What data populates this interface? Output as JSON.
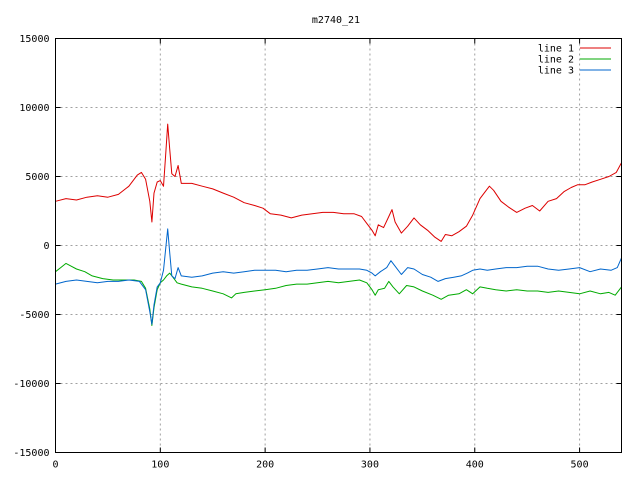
{
  "chart_data": {
    "type": "line",
    "title": "m2740_21",
    "xlabel": "",
    "ylabel": "",
    "xlim": [
      0,
      540
    ],
    "ylim": [
      -15000,
      15000
    ],
    "xticks": [
      0,
      100,
      200,
      300,
      400,
      500
    ],
    "yticks": [
      -15000,
      -10000,
      -5000,
      0,
      5000,
      10000,
      15000
    ],
    "grid": true,
    "legend_position": "top-right",
    "series": [
      {
        "name": "line 1",
        "color": "#dd0000",
        "points": [
          [
            0,
            3200
          ],
          [
            10,
            3400
          ],
          [
            20,
            3300
          ],
          [
            30,
            3500
          ],
          [
            40,
            3600
          ],
          [
            50,
            3500
          ],
          [
            60,
            3700
          ],
          [
            70,
            4300
          ],
          [
            78,
            5100
          ],
          [
            82,
            5300
          ],
          [
            86,
            4800
          ],
          [
            90,
            3200
          ],
          [
            92,
            1700
          ],
          [
            94,
            3800
          ],
          [
            97,
            4600
          ],
          [
            100,
            4700
          ],
          [
            103,
            4300
          ],
          [
            105,
            6500
          ],
          [
            107,
            8800
          ],
          [
            109,
            7000
          ],
          [
            111,
            5200
          ],
          [
            114,
            5000
          ],
          [
            117,
            5800
          ],
          [
            120,
            4500
          ],
          [
            130,
            4500
          ],
          [
            140,
            4300
          ],
          [
            150,
            4100
          ],
          [
            160,
            3800
          ],
          [
            170,
            3500
          ],
          [
            180,
            3100
          ],
          [
            190,
            2900
          ],
          [
            198,
            2700
          ],
          [
            205,
            2300
          ],
          [
            215,
            2200
          ],
          [
            225,
            2000
          ],
          [
            235,
            2200
          ],
          [
            245,
            2300
          ],
          [
            255,
            2400
          ],
          [
            265,
            2400
          ],
          [
            275,
            2300
          ],
          [
            285,
            2300
          ],
          [
            292,
            2100
          ],
          [
            297,
            1600
          ],
          [
            302,
            1100
          ],
          [
            305,
            700
          ],
          [
            308,
            1500
          ],
          [
            313,
            1300
          ],
          [
            318,
            2100
          ],
          [
            321,
            2600
          ],
          [
            324,
            1700
          ],
          [
            330,
            900
          ],
          [
            336,
            1400
          ],
          [
            342,
            2000
          ],
          [
            348,
            1500
          ],
          [
            355,
            1100
          ],
          [
            362,
            600
          ],
          [
            368,
            300
          ],
          [
            372,
            800
          ],
          [
            378,
            700
          ],
          [
            385,
            1000
          ],
          [
            392,
            1400
          ],
          [
            398,
            2200
          ],
          [
            405,
            3400
          ],
          [
            410,
            3900
          ],
          [
            414,
            4300
          ],
          [
            418,
            4000
          ],
          [
            425,
            3200
          ],
          [
            432,
            2800
          ],
          [
            440,
            2400
          ],
          [
            448,
            2700
          ],
          [
            455,
            2900
          ],
          [
            462,
            2500
          ],
          [
            470,
            3200
          ],
          [
            478,
            3400
          ],
          [
            485,
            3900
          ],
          [
            492,
            4200
          ],
          [
            498,
            4400
          ],
          [
            505,
            4400
          ],
          [
            512,
            4600
          ],
          [
            520,
            4800
          ],
          [
            528,
            5000
          ],
          [
            535,
            5300
          ],
          [
            540,
            6000
          ]
        ]
      },
      {
        "name": "line 2",
        "color": "#00aa00",
        "points": [
          [
            0,
            -1900
          ],
          [
            5,
            -1600
          ],
          [
            10,
            -1300
          ],
          [
            15,
            -1500
          ],
          [
            20,
            -1700
          ],
          [
            28,
            -1900
          ],
          [
            35,
            -2200
          ],
          [
            45,
            -2400
          ],
          [
            55,
            -2500
          ],
          [
            65,
            -2500
          ],
          [
            75,
            -2500
          ],
          [
            82,
            -2600
          ],
          [
            86,
            -3100
          ],
          [
            90,
            -4600
          ],
          [
            92,
            -5800
          ],
          [
            94,
            -4500
          ],
          [
            97,
            -3200
          ],
          [
            100,
            -2700
          ],
          [
            103,
            -2500
          ],
          [
            106,
            -2200
          ],
          [
            109,
            -2000
          ],
          [
            112,
            -2300
          ],
          [
            116,
            -2700
          ],
          [
            120,
            -2800
          ],
          [
            130,
            -3000
          ],
          [
            140,
            -3100
          ],
          [
            150,
            -3300
          ],
          [
            160,
            -3500
          ],
          [
            168,
            -3800
          ],
          [
            172,
            -3500
          ],
          [
            180,
            -3400
          ],
          [
            190,
            -3300
          ],
          [
            200,
            -3200
          ],
          [
            210,
            -3100
          ],
          [
            220,
            -2900
          ],
          [
            230,
            -2800
          ],
          [
            240,
            -2800
          ],
          [
            250,
            -2700
          ],
          [
            260,
            -2600
          ],
          [
            270,
            -2700
          ],
          [
            280,
            -2600
          ],
          [
            290,
            -2500
          ],
          [
            297,
            -2700
          ],
          [
            302,
            -3200
          ],
          [
            305,
            -3600
          ],
          [
            308,
            -3200
          ],
          [
            314,
            -3100
          ],
          [
            318,
            -2600
          ],
          [
            322,
            -3000
          ],
          [
            328,
            -3500
          ],
          [
            335,
            -2900
          ],
          [
            342,
            -3000
          ],
          [
            350,
            -3300
          ],
          [
            360,
            -3600
          ],
          [
            368,
            -3900
          ],
          [
            375,
            -3600
          ],
          [
            385,
            -3500
          ],
          [
            392,
            -3200
          ],
          [
            398,
            -3500
          ],
          [
            405,
            -3000
          ],
          [
            412,
            -3100
          ],
          [
            420,
            -3200
          ],
          [
            430,
            -3300
          ],
          [
            440,
            -3200
          ],
          [
            450,
            -3300
          ],
          [
            460,
            -3300
          ],
          [
            470,
            -3400
          ],
          [
            480,
            -3300
          ],
          [
            490,
            -3400
          ],
          [
            500,
            -3500
          ],
          [
            510,
            -3300
          ],
          [
            520,
            -3500
          ],
          [
            528,
            -3400
          ],
          [
            534,
            -3600
          ],
          [
            540,
            -3000
          ]
        ]
      },
      {
        "name": "line 3",
        "color": "#0066cc",
        "points": [
          [
            0,
            -2800
          ],
          [
            10,
            -2600
          ],
          [
            20,
            -2500
          ],
          [
            30,
            -2600
          ],
          [
            40,
            -2700
          ],
          [
            50,
            -2600
          ],
          [
            60,
            -2600
          ],
          [
            70,
            -2500
          ],
          [
            80,
            -2600
          ],
          [
            86,
            -3200
          ],
          [
            90,
            -4800
          ],
          [
            92,
            -5700
          ],
          [
            94,
            -4300
          ],
          [
            97,
            -3000
          ],
          [
            100,
            -2700
          ],
          [
            103,
            -1800
          ],
          [
            105,
            -300
          ],
          [
            107,
            1200
          ],
          [
            109,
            -500
          ],
          [
            111,
            -2200
          ],
          [
            114,
            -2400
          ],
          [
            117,
            -1600
          ],
          [
            120,
            -2200
          ],
          [
            130,
            -2300
          ],
          [
            140,
            -2200
          ],
          [
            150,
            -2000
          ],
          [
            160,
            -1900
          ],
          [
            170,
            -2000
          ],
          [
            180,
            -1900
          ],
          [
            190,
            -1800
          ],
          [
            200,
            -1800
          ],
          [
            210,
            -1800
          ],
          [
            220,
            -1900
          ],
          [
            230,
            -1800
          ],
          [
            240,
            -1800
          ],
          [
            250,
            -1700
          ],
          [
            260,
            -1600
          ],
          [
            270,
            -1700
          ],
          [
            280,
            -1700
          ],
          [
            290,
            -1700
          ],
          [
            297,
            -1800
          ],
          [
            302,
            -2000
          ],
          [
            305,
            -2200
          ],
          [
            310,
            -1900
          ],
          [
            316,
            -1600
          ],
          [
            320,
            -1100
          ],
          [
            324,
            -1500
          ],
          [
            330,
            -2100
          ],
          [
            336,
            -1600
          ],
          [
            342,
            -1700
          ],
          [
            350,
            -2100
          ],
          [
            358,
            -2300
          ],
          [
            365,
            -2600
          ],
          [
            372,
            -2400
          ],
          [
            380,
            -2300
          ],
          [
            387,
            -2200
          ],
          [
            393,
            -2000
          ],
          [
            398,
            -1800
          ],
          [
            405,
            -1700
          ],
          [
            412,
            -1800
          ],
          [
            420,
            -1700
          ],
          [
            430,
            -1600
          ],
          [
            440,
            -1600
          ],
          [
            450,
            -1500
          ],
          [
            460,
            -1500
          ],
          [
            470,
            -1700
          ],
          [
            480,
            -1800
          ],
          [
            490,
            -1700
          ],
          [
            500,
            -1600
          ],
          [
            510,
            -1900
          ],
          [
            520,
            -1700
          ],
          [
            530,
            -1800
          ],
          [
            536,
            -1600
          ],
          [
            540,
            -900
          ]
        ]
      }
    ]
  }
}
